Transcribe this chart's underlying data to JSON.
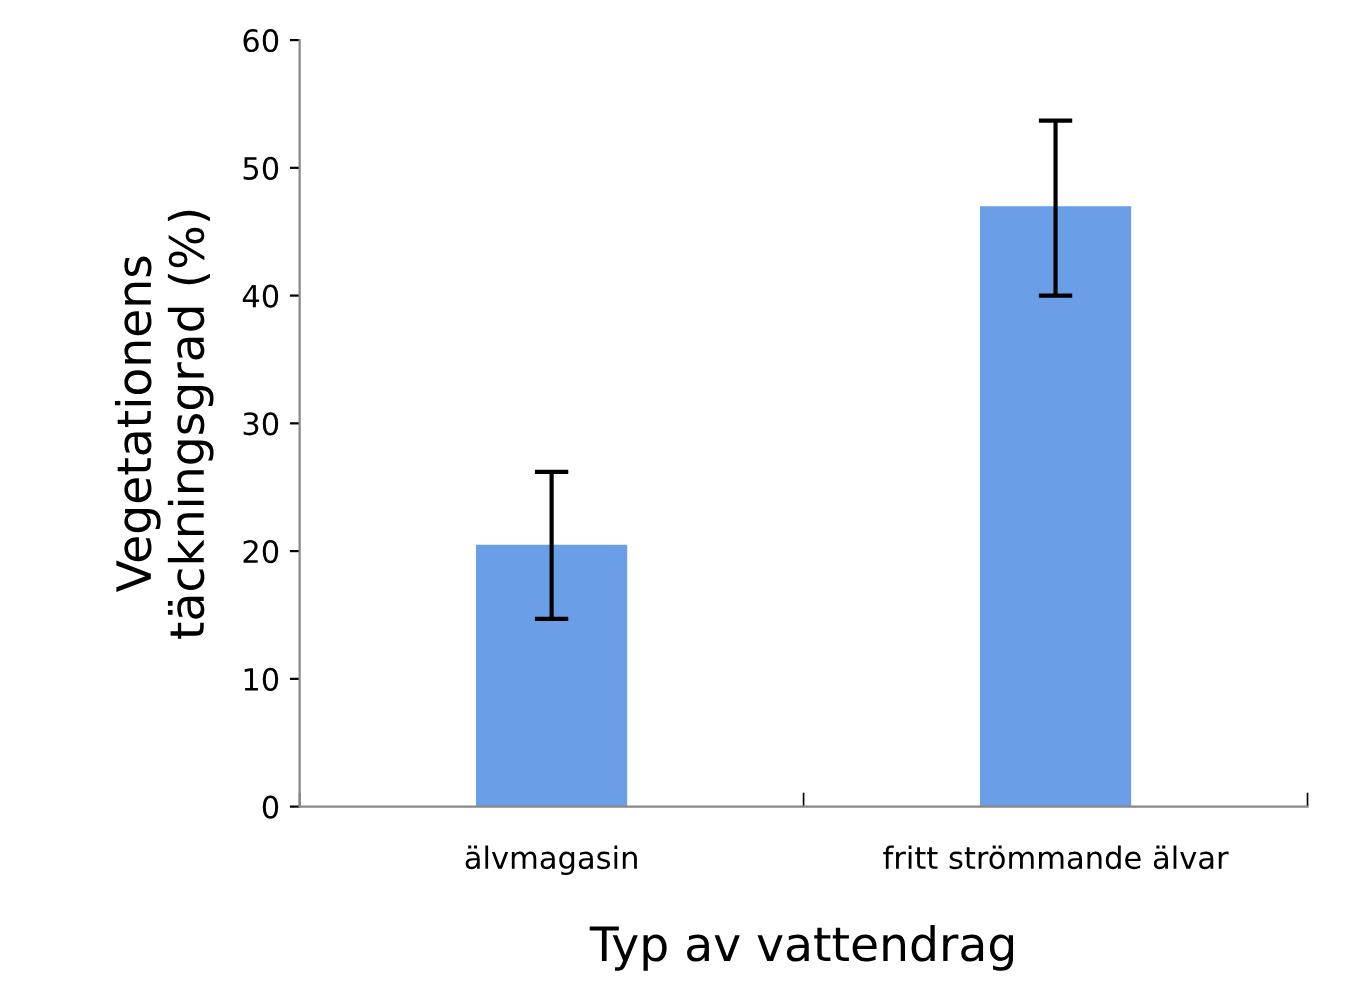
{
  "chart_data": {
    "type": "bar",
    "xlabel": "Typ av vattendrag",
    "ylabel": "Vegetationens\ntäckningsgrad (%)",
    "categories": [
      "älvmagasin",
      "fritt strömmande älvar"
    ],
    "values": [
      20.5,
      47.0
    ],
    "errors": [
      [
        14.7,
        26.2
      ],
      [
        40.0,
        53.7
      ]
    ],
    "color": "#6a9ee6",
    "ylim": [
      0,
      60
    ],
    "yticks": [
      0,
      10,
      20,
      30,
      40,
      50,
      60
    ],
    "grid": false
  }
}
